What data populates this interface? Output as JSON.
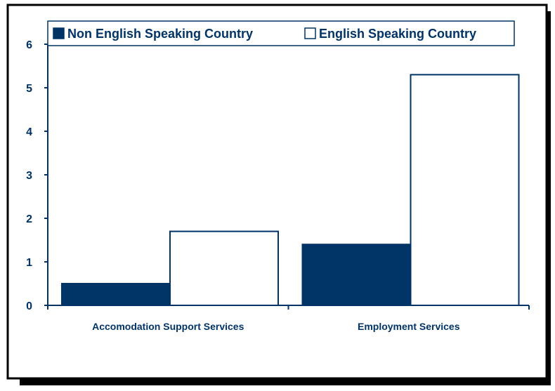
{
  "colors": {
    "navy": "#003366",
    "background": "#ffffff",
    "frame": "#000000",
    "shadow": "#000000"
  },
  "chart_data": {
    "type": "bar",
    "categories": [
      "Accomodation Support Services",
      "Employment Services"
    ],
    "series": [
      {
        "name": "Non English Speaking Country",
        "values": [
          0.5,
          1.4
        ],
        "fill": "#003366"
      },
      {
        "name": "English Speaking Country",
        "values": [
          1.7,
          5.3
        ],
        "fill": "#ffffff"
      }
    ],
    "title": "",
    "xlabel": "",
    "ylabel": "",
    "ylim": [
      0,
      6
    ],
    "yticks": [
      0,
      1,
      2,
      3,
      4,
      5,
      6
    ],
    "grid": false,
    "legend": "top"
  }
}
